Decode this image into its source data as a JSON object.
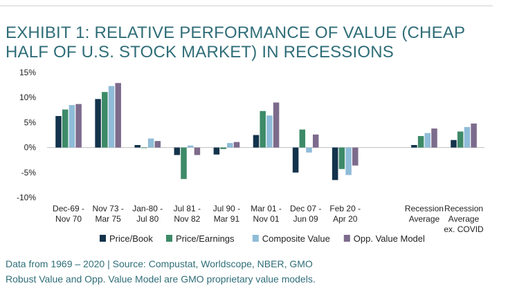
{
  "title_lines": [
    "EXHIBIT 1: RELATIVE PERFORMANCE OF VALUE (CHEAP",
    "HALF OF U.S. STOCK MARKET) IN RECESSIONS"
  ],
  "footnotes": [
    "Data from 1969 – 2020 | Source: Compustat, Worldscope, NBER, GMO",
    "Robust Value and Opp. Value Model are GMO proprietary value models."
  ],
  "chart_data": {
    "type": "bar",
    "title": "EXHIBIT 1: RELATIVE PERFORMANCE OF VALUE (CHEAP HALF OF U.S. STOCK MARKET) IN RECESSIONS",
    "xlabel": "",
    "ylabel": "",
    "ylim": [
      -10,
      15
    ],
    "yticks": [
      -10,
      -5,
      0,
      5,
      10,
      15
    ],
    "ytick_labels": [
      "-10%",
      "-5%",
      "0%",
      "5%",
      "10%",
      "15%"
    ],
    "grid": false,
    "legend_position": "bottom",
    "categories": [
      [
        "Dec-69 -",
        "Nov 70"
      ],
      [
        "Nov 73 -",
        "Mar 75"
      ],
      [
        "Jan-80 -",
        "Jul 80"
      ],
      [
        "Jul 81 -",
        "Nov 82"
      ],
      [
        "Jul 90 -",
        "Mar 91"
      ],
      [
        "Mar 01 -",
        "Nov 01"
      ],
      [
        "Dec 07 -",
        "Jun 09"
      ],
      [
        "Feb 20 -",
        "Apr 20"
      ],
      [
        "",
        ""
      ],
      [
        "Recession",
        "Average"
      ],
      [
        "Recession",
        "Average",
        "ex. COVID"
      ]
    ],
    "series": [
      {
        "name": "Price/Book",
        "color": "#13334c",
        "values": [
          6.3,
          9.7,
          0.5,
          -1.5,
          -1.4,
          2.5,
          -5.0,
          -6.5,
          null,
          0.5,
          1.5
        ]
      },
      {
        "name": "Price/Earnings",
        "color": "#3d8a68",
        "values": [
          7.6,
          11.1,
          0.0,
          -6.3,
          -0.3,
          7.3,
          3.6,
          -4.3,
          null,
          2.3,
          3.2
        ]
      },
      {
        "name": "Composite Value",
        "color": "#8fbcd8",
        "values": [
          8.5,
          12.3,
          1.8,
          0.4,
          0.9,
          6.4,
          -1.0,
          -5.5,
          null,
          2.9,
          4.1
        ]
      },
      {
        "name": "Opp. Value Model",
        "color": "#7d6b8c",
        "values": [
          8.7,
          12.9,
          1.3,
          -1.5,
          1.1,
          9.0,
          2.6,
          -3.6,
          null,
          3.8,
          4.8
        ]
      }
    ]
  }
}
